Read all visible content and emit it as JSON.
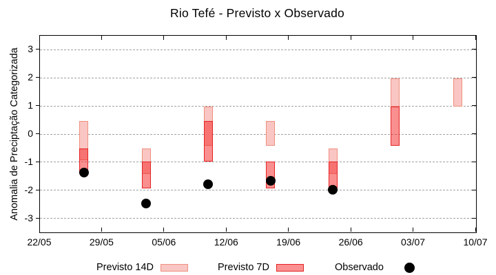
{
  "title": "Rio Tefé - Previsto x Observado",
  "y_axis_label": "Anomalia de Preciptação Categorizada",
  "legend": {
    "previsto_14d": "Previsto 14D",
    "previsto_7d": "Previsto 7D",
    "observado": "Observado"
  },
  "colors": {
    "forecast14_fill": "#f9c6c3",
    "forecast14_border": "#ef8f7f",
    "forecast7_fill": "rgba(244,32,32,0.5)",
    "forecast7_fill_solid": "#fa9090",
    "forecast7_border": "#e52222",
    "observed": "#000000",
    "grid": "#a0a0a0"
  },
  "chart_data": {
    "type": "bar",
    "subtype": "range-candlestick-with-scatter",
    "title": "Rio Tefé - Previsto x Observado",
    "xlabel": "",
    "ylabel": "Anomalia de Preciptação Categorizada",
    "ylim": [
      -3.5,
      3.5
    ],
    "y_ticks": [
      3,
      2,
      1,
      0,
      -1,
      -2,
      -3
    ],
    "grid": "horizontal-dashed",
    "legend_position": "below-plot",
    "x_tick_labels": [
      "22/05",
      "29/05",
      "05/06",
      "12/06",
      "19/06",
      "26/06",
      "03/07",
      "10/07"
    ],
    "x_tick_day_offsets": [
      0,
      7,
      14,
      21,
      28,
      35,
      42,
      49
    ],
    "x_axis_span_days": 49,
    "bars_day_offsets": [
      5,
      12,
      19,
      26,
      33,
      40,
      47
    ],
    "series": [
      {
        "name": "Previsto 14D",
        "type": "range-bar",
        "ranges_high_low": [
          [
            0.45,
            -0.95
          ],
          [
            -0.55,
            -1.45
          ],
          [
            0.95,
            -0.45
          ],
          [
            0.45,
            -0.45
          ],
          [
            -0.55,
            -1.45
          ],
          [
            1.95,
            0.95
          ],
          [
            1.95,
            0.95
          ]
        ]
      },
      {
        "name": "Previsto 7D",
        "type": "range-bar",
        "ranges_high_low": [
          [
            -0.55,
            -1.45
          ],
          [
            -1.0,
            -1.95
          ],
          [
            0.45,
            -1.0
          ],
          [
            -1.0,
            -1.95
          ],
          [
            -1.0,
            -1.95
          ],
          [
            0.95,
            -0.45
          ],
          null
        ]
      },
      {
        "name": "Observado",
        "type": "scatter",
        "values": [
          -1.4,
          -2.5,
          -1.8,
          -1.7,
          -2.0,
          null,
          null
        ]
      }
    ]
  }
}
